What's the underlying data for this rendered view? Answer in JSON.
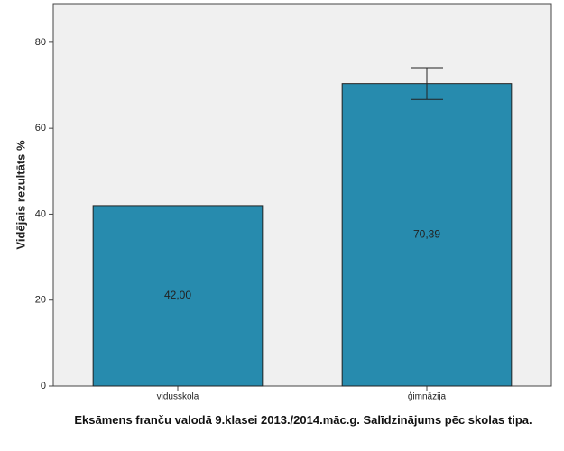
{
  "chart_data": {
    "type": "bar",
    "title": "Eksāmens franču valodā 9.klasei 2013./2014.māc.g. Salīdzinājums pēc skolas tipa.",
    "y_label": "Vidējais rezultāts %",
    "categories": [
      "vidusskola",
      "ģimnāzija"
    ],
    "values": [
      42.0,
      70.39
    ],
    "value_labels": [
      "42,00",
      "70,39"
    ],
    "errors": [
      null,
      3.7
    ],
    "color": "#278bae",
    "ylim": [
      0,
      89
    ],
    "yticks": [
      0,
      20,
      40,
      60,
      80
    ],
    "grid": false
  }
}
